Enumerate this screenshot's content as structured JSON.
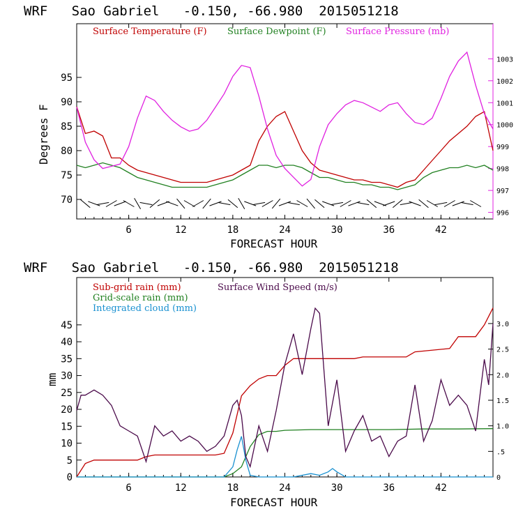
{
  "chart_data": [
    {
      "type": "line",
      "title": "WRF   Sao Gabriel   -0.150, -66.980  2015051218",
      "xlabel": "FORECAST HOUR",
      "ylabel": "Degrees F",
      "xlim": [
        0,
        48
      ],
      "ylim": [
        66,
        106
      ],
      "y2lim": [
        995.7,
        1004.6
      ],
      "x_ticks": [
        6,
        12,
        18,
        24,
        30,
        36,
        42
      ],
      "y_ticks": [
        70,
        75,
        80,
        85,
        90,
        95
      ],
      "y2_ticks": [
        996,
        997,
        998,
        999,
        1000,
        1001,
        1002,
        1003
      ],
      "colors": {
        "temp": "#c00000",
        "dew": "#208020",
        "pres": "#e020e0",
        "wind": "#000000"
      },
      "series": [
        {
          "name": "Surface Temperature (F)",
          "axis": "left",
          "x": [
            0,
            1,
            2,
            3,
            4,
            5,
            6,
            7,
            8,
            9,
            10,
            11,
            12,
            13,
            14,
            15,
            16,
            17,
            18,
            19,
            20,
            21,
            22,
            23,
            24,
            25,
            26,
            27,
            28,
            29,
            30,
            31,
            32,
            33,
            34,
            35,
            36,
            37,
            38,
            39,
            40,
            41,
            42,
            43,
            44,
            45,
            46,
            47,
            48
          ],
          "values": [
            89,
            83.5,
            84,
            83,
            78.5,
            78.5,
            77,
            76,
            75.5,
            75,
            74.5,
            74,
            73.5,
            73.5,
            73.5,
            73.5,
            74,
            74.5,
            75,
            76,
            77,
            82,
            85,
            87,
            88,
            84,
            80,
            77.5,
            76,
            75.5,
            75,
            74.5,
            74,
            74,
            73.5,
            73.5,
            73,
            72.5,
            73.5,
            74,
            76,
            78,
            80,
            82,
            83.5,
            85,
            87,
            88,
            80
          ]
        },
        {
          "name": "Surface Dewpoint (F)",
          "axis": "left",
          "x": [
            0,
            1,
            2,
            3,
            4,
            5,
            6,
            7,
            8,
            9,
            10,
            11,
            12,
            13,
            14,
            15,
            16,
            17,
            18,
            19,
            20,
            21,
            22,
            23,
            24,
            25,
            26,
            27,
            28,
            29,
            30,
            31,
            32,
            33,
            34,
            35,
            36,
            37,
            38,
            39,
            40,
            41,
            42,
            43,
            44,
            45,
            46,
            47,
            48
          ],
          "values": [
            77,
            76.5,
            77,
            77.5,
            77,
            76.5,
            75.5,
            74.5,
            74,
            73.5,
            73,
            72.5,
            72.5,
            72.5,
            72.5,
            72.5,
            73,
            73.5,
            74,
            75,
            76,
            77,
            77,
            76.5,
            77,
            77,
            76.5,
            75.5,
            74.5,
            74.5,
            74,
            73.5,
            73.5,
            73,
            73,
            72.5,
            72.5,
            72,
            72.5,
            73,
            74.5,
            75.5,
            76,
            76.5,
            76.5,
            77,
            76.5,
            77,
            76
          ]
        },
        {
          "name": "Surface Pressure (mb)",
          "axis": "right",
          "x": [
            0,
            1,
            2,
            3,
            4,
            5,
            6,
            7,
            8,
            9,
            10,
            11,
            12,
            13,
            14,
            15,
            16,
            17,
            18,
            19,
            20,
            21,
            22,
            23,
            24,
            25,
            26,
            27,
            28,
            29,
            30,
            31,
            32,
            33,
            34,
            35,
            36,
            37,
            38,
            39,
            40,
            41,
            42,
            43,
            44,
            45,
            46,
            47,
            48
          ],
          "values": [
            1000.8,
            999.2,
            998.4,
            998.0,
            998.1,
            998.2,
            999.0,
            1000.3,
            1001.3,
            1001.1,
            1000.6,
            1000.2,
            999.9,
            999.7,
            999.8,
            1000.2,
            1000.8,
            1001.4,
            1002.2,
            1002.7,
            1002.6,
            1001.3,
            999.8,
            998.6,
            998.0,
            997.6,
            997.2,
            997.5,
            999.0,
            1000.0,
            1000.5,
            1000.9,
            1001.1,
            1001.0,
            1000.8,
            1000.6,
            1000.9,
            1001.0,
            1000.5,
            1000.1,
            1000.0,
            1000.3,
            1001.2,
            1002.2,
            1002.9,
            1003.3,
            1001.8,
            1000.5,
            999.8
          ]
        }
      ],
      "annotation": "Surface wind barbs along bottom of panel"
    },
    {
      "type": "line",
      "title": "WRF   Sao Gabriel   -0.150, -66.980  2015051218",
      "xlabel": "FORECAST HOUR",
      "ylabel": "mm",
      "xlim": [
        0,
        48
      ],
      "ylim": [
        0,
        59
      ],
      "y2lim": [
        0,
        3.9
      ],
      "x_ticks": [
        6,
        12,
        18,
        24,
        30,
        36,
        42
      ],
      "y_ticks": [
        0,
        5,
        10,
        15,
        20,
        25,
        30,
        35,
        40,
        45
      ],
      "y2_ticks": [
        "0",
        ".5",
        "1.0",
        "1.5",
        "2.0",
        "2.5",
        "3.0"
      ],
      "y2_tick_values": [
        0,
        0.5,
        1.0,
        1.5,
        2.0,
        2.5,
        3.0
      ],
      "colors": {
        "subgrid": "#c00000",
        "grid": "#208020",
        "cloud": "#1890d0",
        "wind": "#4a0a4a"
      },
      "series": [
        {
          "name": "Sub-grid rain (mm)",
          "axis": "left",
          "x": [
            0,
            1,
            2,
            3,
            7,
            8,
            9,
            16,
            17,
            18,
            19,
            20,
            21,
            22,
            23,
            24,
            25,
            26,
            27,
            32,
            33,
            38,
            39,
            43,
            44,
            46,
            47,
            48
          ],
          "values": [
            0,
            4,
            5,
            5,
            5,
            6,
            6.5,
            6.5,
            7,
            13,
            24,
            27,
            29,
            30,
            30,
            33,
            35,
            35,
            35,
            35,
            35.5,
            35.5,
            37,
            38,
            41.5,
            41.5,
            45,
            50
          ]
        },
        {
          "name": "Grid-scale rain (mm)",
          "axis": "left",
          "x": [
            0,
            17,
            18,
            19,
            20,
            21,
            22,
            23,
            24,
            27,
            30,
            33,
            36,
            40,
            44,
            48
          ],
          "values": [
            0,
            0,
            1,
            3,
            9,
            12.5,
            13.5,
            13.5,
            13.8,
            14,
            14,
            14,
            14,
            14.2,
            14.2,
            14.3
          ]
        },
        {
          "name": "Integrated cloud (mm)",
          "axis": "left",
          "x": [
            0,
            17,
            18,
            18.5,
            19,
            19.5,
            20,
            21,
            25,
            27,
            28,
            29,
            29.5,
            30,
            31,
            48
          ],
          "values": [
            0,
            0,
            3,
            8,
            12,
            5,
            0.5,
            0,
            0,
            1,
            0.5,
            1.5,
            2.5,
            1.5,
            0,
            0
          ]
        },
        {
          "name": "Surface Wind Speed (m/s)",
          "axis": "right",
          "x": [
            0,
            0.5,
            1,
            2,
            3,
            4,
            5,
            6,
            7,
            8,
            9,
            10,
            11,
            12,
            13,
            14,
            15,
            16,
            17,
            18,
            18.5,
            19,
            19.5,
            20,
            21,
            22,
            23,
            24,
            25,
            26,
            27,
            27.5,
            28,
            29,
            30,
            31,
            32,
            33,
            34,
            35,
            36,
            37,
            38,
            39,
            40,
            41,
            42,
            43,
            44,
            45,
            46,
            47,
            47.5,
            48
          ],
          "values": [
            1.3,
            1.6,
            1.6,
            1.7,
            1.6,
            1.4,
            1.0,
            0.9,
            0.8,
            0.3,
            1.0,
            0.8,
            0.9,
            0.7,
            0.8,
            0.7,
            0.5,
            0.6,
            0.8,
            1.4,
            1.5,
            1.2,
            0.4,
            0.2,
            1.0,
            0.5,
            1.3,
            2.2,
            2.8,
            2.0,
            2.9,
            3.3,
            3.2,
            1.0,
            1.9,
            0.5,
            0.9,
            1.2,
            0.7,
            0.8,
            0.4,
            0.7,
            0.8,
            1.8,
            0.7,
            1.1,
            1.9,
            1.4,
            1.6,
            1.4,
            0.9,
            2.3,
            1.8,
            3.0
          ]
        }
      ]
    }
  ]
}
